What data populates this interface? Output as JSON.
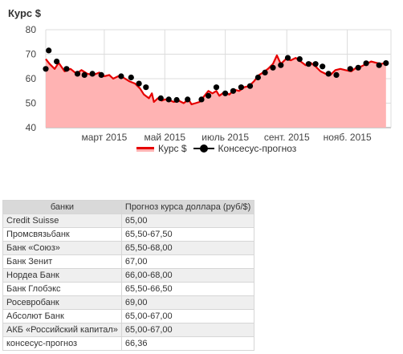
{
  "chart_data": {
    "type": "line",
    "title": "Курс $",
    "ylim": [
      40,
      80
    ],
    "yticks": [
      40,
      50,
      60,
      70,
      80
    ],
    "xticks": [
      {
        "label": "март 2015",
        "x": "2015-03-01"
      },
      {
        "label": "май 2015",
        "x": "2015-05-01"
      },
      {
        "label": "июль 2015",
        "x": "2015-07-01"
      },
      {
        "label": "сент. 2015",
        "x": "2015-09-01"
      },
      {
        "label": "нояб. 2015",
        "x": "2015-11-01"
      }
    ],
    "xlim": [
      "2015-01-01",
      "2015-12-15"
    ],
    "grid": true,
    "legend_position": "bottom",
    "series": [
      {
        "name": "Курс $",
        "style": "area",
        "line_color": "#e60000",
        "fill_color": "#ffb3b3",
        "points": [
          [
            "2015-01-01",
            68
          ],
          [
            "2015-01-05",
            66
          ],
          [
            "2015-01-10",
            64
          ],
          [
            "2015-01-14",
            66.5
          ],
          [
            "2015-01-20",
            63
          ],
          [
            "2015-01-26",
            64
          ],
          [
            "2015-02-01",
            62
          ],
          [
            "2015-02-06",
            63.5
          ],
          [
            "2015-02-12",
            62
          ],
          [
            "2015-02-18",
            61.5
          ],
          [
            "2015-02-24",
            62.5
          ],
          [
            "2015-03-01",
            61
          ],
          [
            "2015-03-06",
            61.5
          ],
          [
            "2015-03-10",
            60
          ],
          [
            "2015-03-15",
            61
          ],
          [
            "2015-03-20",
            60.5
          ],
          [
            "2015-03-26",
            59
          ],
          [
            "2015-04-01",
            58
          ],
          [
            "2015-04-06",
            56
          ],
          [
            "2015-04-10",
            53.5
          ],
          [
            "2015-04-15",
            52
          ],
          [
            "2015-04-18",
            54
          ],
          [
            "2015-04-20",
            50.5
          ],
          [
            "2015-04-24",
            52
          ],
          [
            "2015-04-28",
            51
          ],
          [
            "2015-05-01",
            51.5
          ],
          [
            "2015-05-05",
            51.3
          ],
          [
            "2015-05-10",
            50.5
          ],
          [
            "2015-05-15",
            51
          ],
          [
            "2015-05-20",
            50
          ],
          [
            "2015-05-25",
            51.5
          ],
          [
            "2015-05-28",
            49.5
          ],
          [
            "2015-06-01",
            50
          ],
          [
            "2015-06-05",
            50.5
          ],
          [
            "2015-06-10",
            53
          ],
          [
            "2015-06-14",
            55
          ],
          [
            "2015-06-18",
            54
          ],
          [
            "2015-06-22",
            55
          ],
          [
            "2015-06-25",
            53
          ],
          [
            "2015-06-30",
            54.5
          ],
          [
            "2015-07-05",
            53.5
          ],
          [
            "2015-07-10",
            55.5
          ],
          [
            "2015-07-15",
            55
          ],
          [
            "2015-07-20",
            56.5
          ],
          [
            "2015-07-25",
            57
          ],
          [
            "2015-07-30",
            59
          ],
          [
            "2015-08-04",
            61.5
          ],
          [
            "2015-08-08",
            62.5
          ],
          [
            "2015-08-13",
            64
          ],
          [
            "2015-08-18",
            66
          ],
          [
            "2015-08-22",
            69.5
          ],
          [
            "2015-08-26",
            66
          ],
          [
            "2015-08-31",
            68
          ],
          [
            "2015-09-05",
            67.5
          ],
          [
            "2015-09-10",
            68.5
          ],
          [
            "2015-09-15",
            67
          ],
          [
            "2015-09-20",
            65.5
          ],
          [
            "2015-09-25",
            66.5
          ],
          [
            "2015-09-30",
            65
          ],
          [
            "2015-10-05",
            63
          ],
          [
            "2015-10-10",
            62
          ],
          [
            "2015-10-15",
            61.5
          ],
          [
            "2015-10-20",
            63.5
          ],
          [
            "2015-10-25",
            64
          ],
          [
            "2015-10-30",
            63.5
          ],
          [
            "2015-11-05",
            63
          ],
          [
            "2015-11-10",
            64.5
          ],
          [
            "2015-11-15",
            65
          ],
          [
            "2015-11-20",
            66
          ],
          [
            "2015-11-25",
            67
          ],
          [
            "2015-11-30",
            66.5
          ],
          [
            "2015-12-05",
            66
          ],
          [
            "2015-12-10",
            66.5
          ]
        ]
      },
      {
        "name": "Консесус-прогноз",
        "style": "dots",
        "color": "#000000",
        "points": [
          [
            "2015-01-01",
            64
          ],
          [
            "2015-01-04",
            71.5
          ],
          [
            "2015-01-12",
            67
          ],
          [
            "2015-01-22",
            64
          ],
          [
            "2015-02-02",
            62
          ],
          [
            "2015-02-09",
            61.5
          ],
          [
            "2015-02-17",
            62
          ],
          [
            "2015-02-26",
            61.5
          ],
          [
            "2015-03-18",
            61
          ],
          [
            "2015-03-28",
            60.5
          ],
          [
            "2015-04-05",
            58
          ],
          [
            "2015-04-12",
            56.5
          ],
          [
            "2015-04-27",
            52
          ],
          [
            "2015-05-05",
            51.5
          ],
          [
            "2015-05-13",
            51.3
          ],
          [
            "2015-05-24",
            51.5
          ],
          [
            "2015-06-07",
            51.5
          ],
          [
            "2015-06-14",
            53
          ],
          [
            "2015-06-22",
            56.5
          ],
          [
            "2015-07-01",
            54
          ],
          [
            "2015-07-09",
            55
          ],
          [
            "2015-07-17",
            56.5
          ],
          [
            "2015-07-26",
            57
          ],
          [
            "2015-08-03",
            60.5
          ],
          [
            "2015-08-10",
            62.5
          ],
          [
            "2015-08-18",
            64.5
          ],
          [
            "2015-08-26",
            65.5
          ],
          [
            "2015-09-02",
            68.5
          ],
          [
            "2015-09-14",
            68
          ],
          [
            "2015-09-23",
            66
          ],
          [
            "2015-09-30",
            66
          ],
          [
            "2015-10-07",
            65
          ],
          [
            "2015-10-13",
            62
          ],
          [
            "2015-10-21",
            61.5
          ],
          [
            "2015-11-04",
            64
          ],
          [
            "2015-11-12",
            64.5
          ],
          [
            "2015-11-20",
            66.3
          ],
          [
            "2015-12-03",
            65.5
          ],
          [
            "2015-12-10",
            66.36
          ]
        ]
      }
    ]
  },
  "table": {
    "headers": [
      "банки",
      "Прогноз курса доллара (руб/$)"
    ],
    "rows": [
      [
        "Credit Suisse",
        "65,00"
      ],
      [
        "Промсвязьбанк",
        "65,50-67,50"
      ],
      [
        "Банк «Союз»",
        "65,50-68,00"
      ],
      [
        "Банк Зенит",
        "67,00"
      ],
      [
        "Нордеа Банк",
        "66,00-68,00"
      ],
      [
        "Банк Глобэкс",
        "65,50-66,50"
      ],
      [
        "Росевробанк",
        "69,00"
      ],
      [
        "Абсолют Банк",
        "65,00-67,00"
      ],
      [
        "АКБ «Российский капитал»",
        "65,00-67,00"
      ],
      [
        "консесус-прогноз",
        "66,36"
      ]
    ]
  }
}
